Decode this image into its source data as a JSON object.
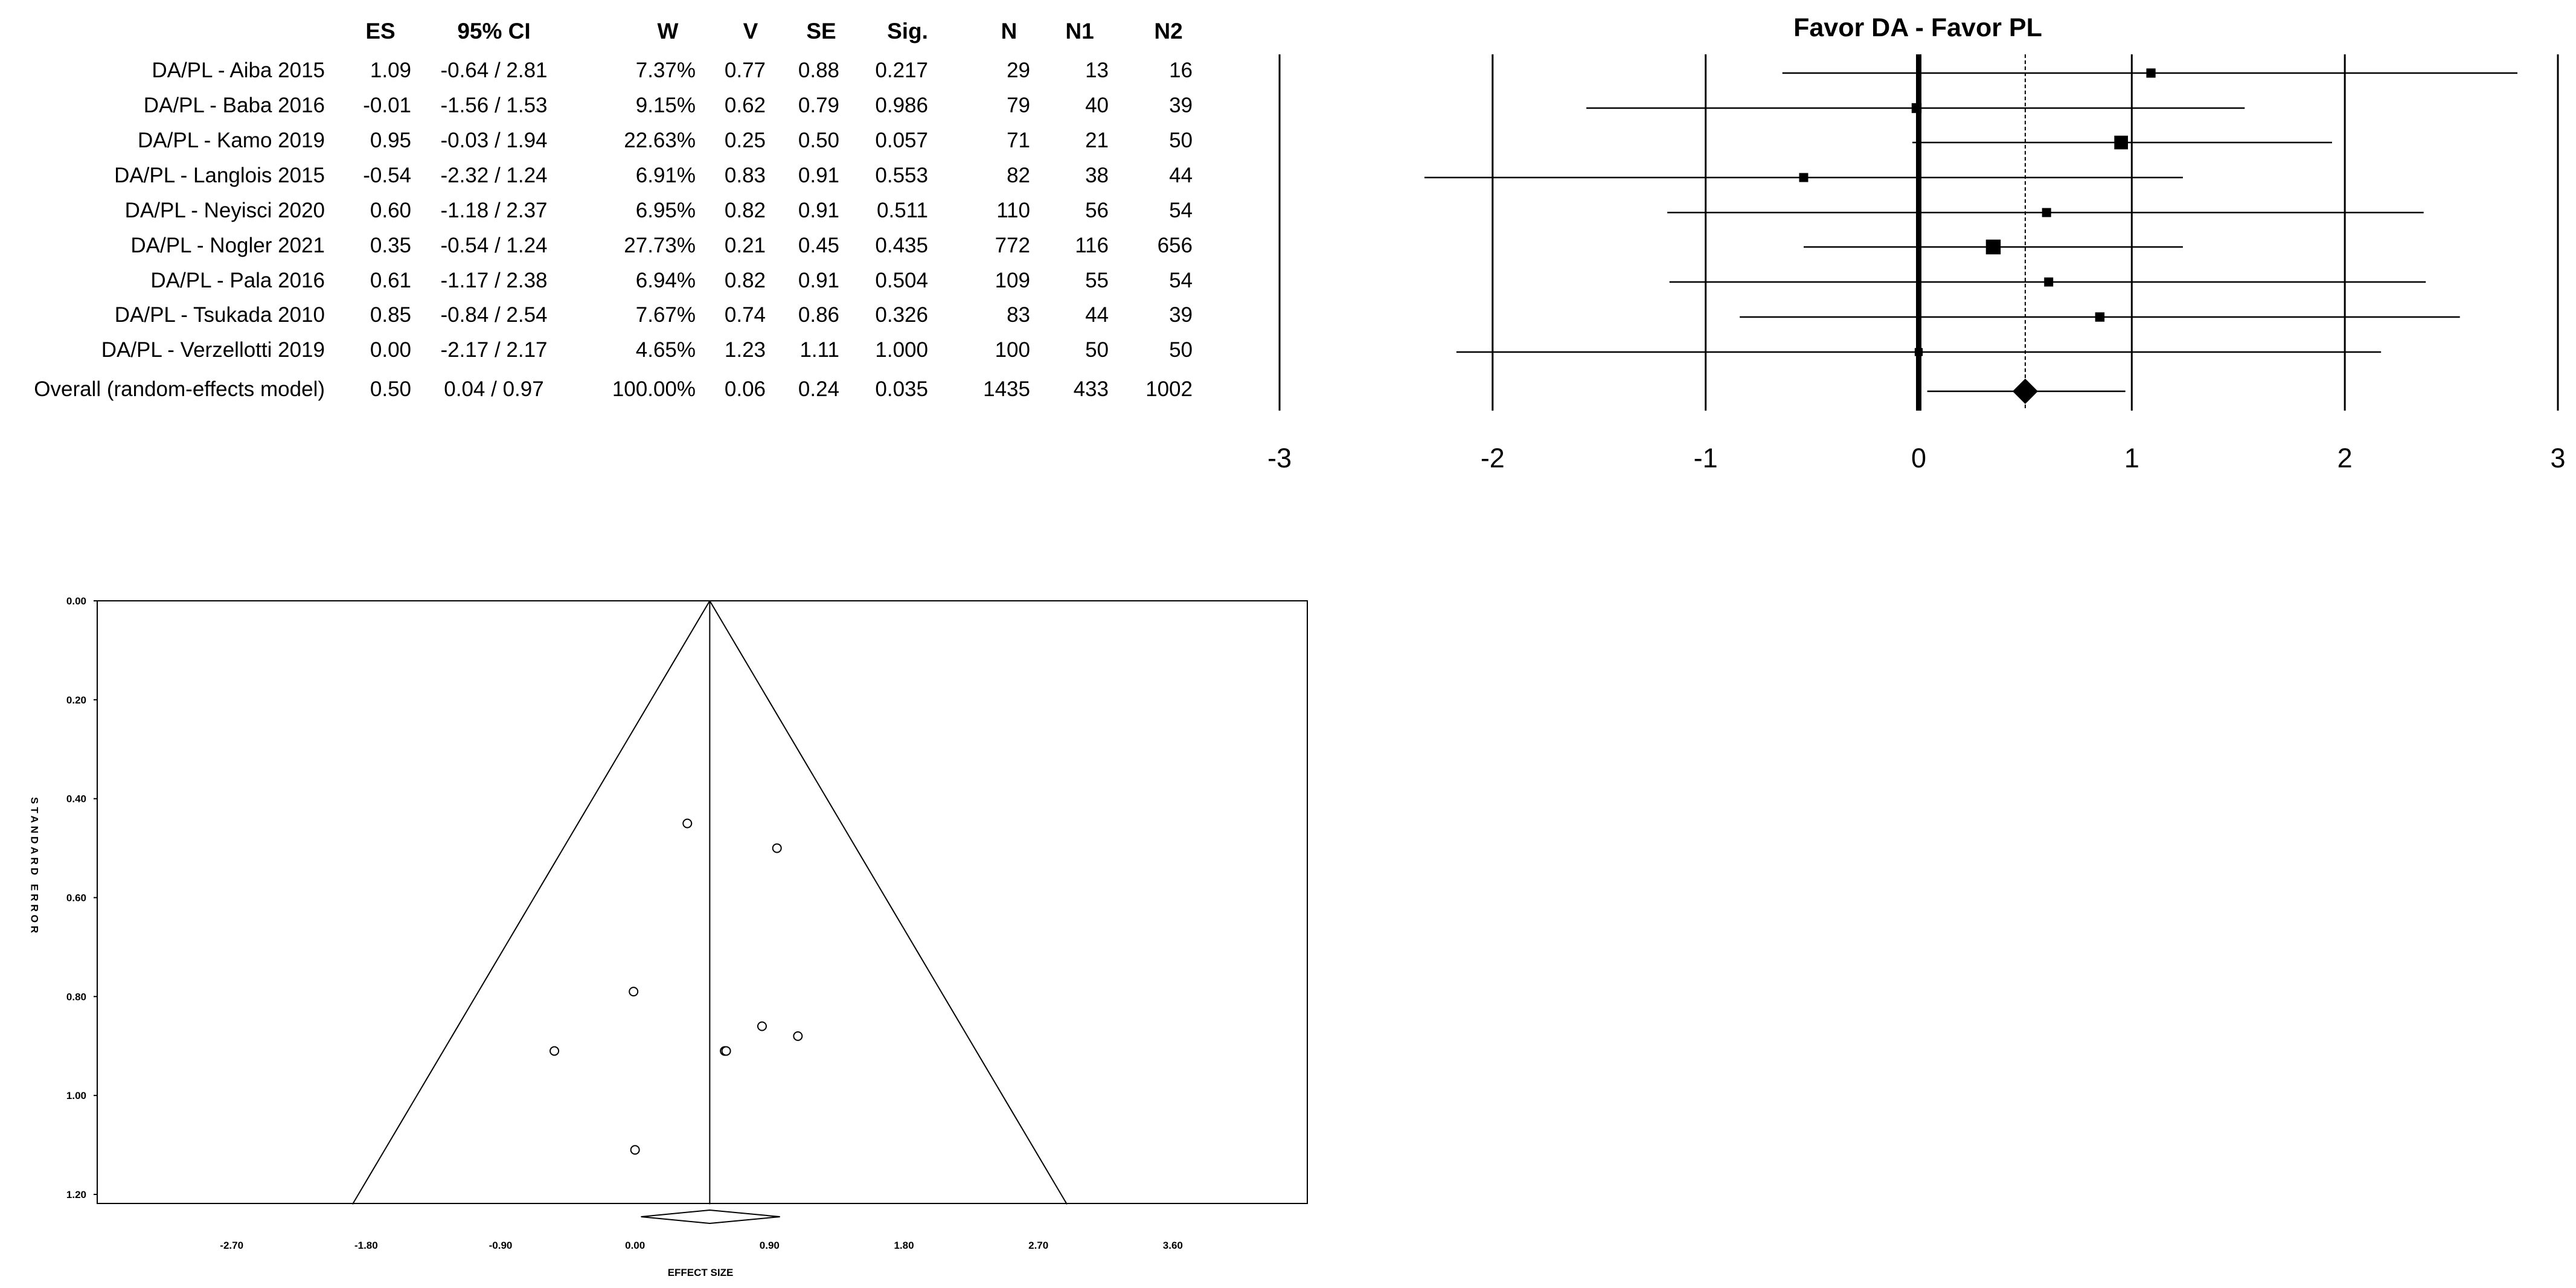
{
  "table": {
    "headers": [
      "ES",
      "95% CI",
      "W",
      "V",
      "SE",
      "Sig.",
      "N",
      "N1",
      "N2"
    ],
    "rows": [
      {
        "label": "DA/PL - Aiba 2015",
        "es": "1.09",
        "ci": "-0.64 / 2.81",
        "w": "7.37%",
        "v": "0.77",
        "se": "0.88",
        "sig": "0.217",
        "n": "29",
        "n1": "13",
        "n2": "16"
      },
      {
        "label": "DA/PL - Baba 2016",
        "es": "-0.01",
        "ci": "-1.56 / 1.53",
        "w": "9.15%",
        "v": "0.62",
        "se": "0.79",
        "sig": "0.986",
        "n": "79",
        "n1": "40",
        "n2": "39"
      },
      {
        "label": "DA/PL - Kamo 2019",
        "es": "0.95",
        "ci": "-0.03 / 1.94",
        "w": "22.63%",
        "v": "0.25",
        "se": "0.50",
        "sig": "0.057",
        "n": "71",
        "n1": "21",
        "n2": "50"
      },
      {
        "label": "DA/PL - Langlois 2015",
        "es": "-0.54",
        "ci": "-2.32 / 1.24",
        "w": "6.91%",
        "v": "0.83",
        "se": "0.91",
        "sig": "0.553",
        "n": "82",
        "n1": "38",
        "n2": "44"
      },
      {
        "label": "DA/PL - Neyisci 2020",
        "es": "0.60",
        "ci": "-1.18 / 2.37",
        "w": "6.95%",
        "v": "0.82",
        "se": "0.91",
        "sig": "0.511",
        "n": "110",
        "n1": "56",
        "n2": "54"
      },
      {
        "label": "DA/PL - Nogler 2021",
        "es": "0.35",
        "ci": "-0.54 / 1.24",
        "w": "27.73%",
        "v": "0.21",
        "se": "0.45",
        "sig": "0.435",
        "n": "772",
        "n1": "116",
        "n2": "656"
      },
      {
        "label": "DA/PL - Pala 2016",
        "es": "0.61",
        "ci": "-1.17 / 2.38",
        "w": "6.94%",
        "v": "0.82",
        "se": "0.91",
        "sig": "0.504",
        "n": "109",
        "n1": "55",
        "n2": "54"
      },
      {
        "label": "DA/PL - Tsukada 2010",
        "es": "0.85",
        "ci": "-0.84 / 2.54",
        "w": "7.67%",
        "v": "0.74",
        "se": "0.86",
        "sig": "0.326",
        "n": "83",
        "n1": "44",
        "n2": "39"
      },
      {
        "label": "DA/PL - Verzellotti 2019",
        "es": "0.00",
        "ci": "-2.17 / 2.17",
        "w": "4.65%",
        "v": "1.23",
        "se": "1.11",
        "sig": "1.000",
        "n": "100",
        "n1": "50",
        "n2": "50"
      }
    ],
    "overall": {
      "label": "Overall (random-effects model)",
      "es": "0.50",
      "ci": "0.04 / 0.97",
      "w": "100.00%",
      "v": "0.06",
      "se": "0.24",
      "sig": "0.035",
      "n": "1435",
      "n1": "433",
      "n2": "1002"
    }
  },
  "chart_data": [
    {
      "type": "forest",
      "title": "Favor DA - Favor PL",
      "xlim": [
        -3,
        3
      ],
      "x_ticks": [
        "-3",
        "-2",
        "-1",
        "0",
        "1",
        "2",
        "3"
      ],
      "studies": [
        {
          "es": 1.09,
          "lo": -0.64,
          "hi": 2.81,
          "weight": 7.37
        },
        {
          "es": -0.01,
          "lo": -1.56,
          "hi": 1.53,
          "weight": 9.15
        },
        {
          "es": 0.95,
          "lo": -0.03,
          "hi": 1.94,
          "weight": 22.63
        },
        {
          "es": -0.54,
          "lo": -2.32,
          "hi": 1.24,
          "weight": 6.91
        },
        {
          "es": 0.6,
          "lo": -1.18,
          "hi": 2.37,
          "weight": 6.95
        },
        {
          "es": 0.35,
          "lo": -0.54,
          "hi": 1.24,
          "weight": 27.73
        },
        {
          "es": 0.61,
          "lo": -1.17,
          "hi": 2.38,
          "weight": 6.94
        },
        {
          "es": 0.85,
          "lo": -0.84,
          "hi": 2.54,
          "weight": 7.67
        },
        {
          "es": 0.0,
          "lo": -2.17,
          "hi": 2.17,
          "weight": 4.65
        }
      ],
      "overall": {
        "es": 0.5,
        "lo": 0.04,
        "hi": 0.97
      },
      "grid": true
    },
    {
      "type": "scatter",
      "subtype": "funnel",
      "xlabel": "EFFECT SIZE",
      "ylabel": "STANDARD ERROR",
      "xlim": [
        -3.6,
        4.5
      ],
      "ylim": [
        1.22,
        0
      ],
      "x_ticks": [
        "-2.70",
        "-1.80",
        "-0.90",
        "0.00",
        "0.90",
        "1.80",
        "2.70",
        "3.60"
      ],
      "y_ticks": [
        "0.00",
        "0.20",
        "0.40",
        "0.60",
        "0.80",
        "1.00",
        "1.20"
      ],
      "center": 0.5,
      "points": [
        {
          "x": 1.09,
          "y": 0.88
        },
        {
          "x": -0.01,
          "y": 0.79
        },
        {
          "x": 0.95,
          "y": 0.5
        },
        {
          "x": -0.54,
          "y": 0.91
        },
        {
          "x": 0.6,
          "y": 0.91
        },
        {
          "x": 0.35,
          "y": 0.45
        },
        {
          "x": 0.61,
          "y": 0.91
        },
        {
          "x": 0.85,
          "y": 0.86
        },
        {
          "x": 0.0,
          "y": 1.11
        }
      ],
      "overall": {
        "es": 0.5,
        "lo": 0.04,
        "hi": 0.97
      }
    }
  ]
}
